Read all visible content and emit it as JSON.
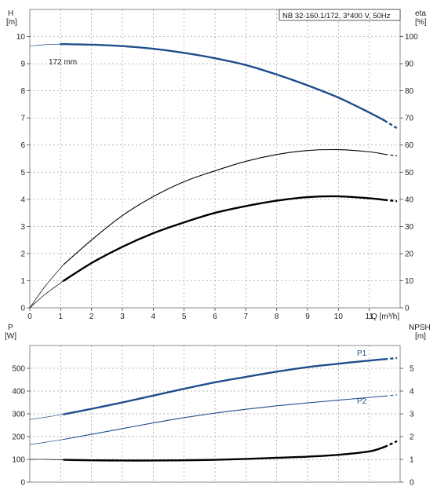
{
  "chart_data": [
    {
      "type": "line",
      "legend_box": "NB 32-160.1/172, 3*400 V, 50Hz",
      "annotation": "172 mm",
      "x_axis": {
        "label": "Q [m³/h]",
        "range": [
          0,
          12
        ],
        "ticks": [
          "0",
          "1",
          "2",
          "3",
          "4",
          "5",
          "6",
          "7",
          "8",
          "9",
          "10",
          "11"
        ]
      },
      "y_left": {
        "label_line1": "H",
        "label_line2": "[m]",
        "range": [
          0,
          11
        ],
        "ticks": [
          "0",
          "1",
          "2",
          "3",
          "4",
          "5",
          "6",
          "7",
          "8",
          "9",
          "10"
        ]
      },
      "y_right": {
        "label_line1": "eta",
        "label_line2": "[%]",
        "range": [
          0,
          110
        ],
        "ticks": [
          "0",
          "10",
          "20",
          "30",
          "40",
          "50",
          "60",
          "70",
          "80",
          "90",
          "100"
        ]
      },
      "grid": true,
      "series": [
        {
          "axis": "left",
          "color": "#1f4e8c",
          "style": "thick",
          "x": [
            0,
            0.5,
            1,
            1.2,
            2,
            3,
            4,
            5,
            6,
            7,
            8,
            9,
            10,
            11,
            11.5,
            11.9
          ],
          "values": [
            9.65,
            9.7,
            9.72,
            9.72,
            9.7,
            9.65,
            9.55,
            9.4,
            9.2,
            8.95,
            8.6,
            8.2,
            7.75,
            7.2,
            6.9,
            6.62
          ]
        },
        {
          "axis": "right",
          "color": "#000000",
          "style": "thin",
          "x": [
            0,
            0.5,
            1.1,
            2,
            3,
            4,
            5,
            6,
            7,
            8,
            9,
            10,
            11,
            11.5,
            11.9
          ],
          "values": [
            0,
            8,
            16,
            25,
            34,
            41,
            46.5,
            50.5,
            54,
            56.5,
            58,
            58.3,
            57.5,
            56.6,
            56
          ]
        },
        {
          "axis": "right",
          "color": "#000000",
          "style": "thick",
          "x": [
            0,
            0.5,
            1.1,
            2,
            3,
            4,
            5,
            6,
            7,
            8,
            9,
            10,
            11,
            11.5,
            11.9
          ],
          "values": [
            0,
            5,
            10,
            16.5,
            22.5,
            27.5,
            31.5,
            35,
            37.5,
            39.5,
            40.8,
            41.1,
            40.4,
            39.8,
            39.3
          ]
        }
      ]
    },
    {
      "type": "line",
      "x_axis": {
        "range": [
          0,
          12
        ]
      },
      "y_left": {
        "label_line1": "P",
        "label_line2": "[W]",
        "range": [
          0,
          600
        ],
        "ticks": [
          "0",
          "100",
          "200",
          "300",
          "400",
          "500"
        ]
      },
      "y_right": {
        "label_line1": "NPSH",
        "label_line2": "[m]",
        "range": [
          0,
          6
        ],
        "ticks": [
          "0",
          "1",
          "2",
          "3",
          "4",
          "5"
        ]
      },
      "grid": true,
      "series": [
        {
          "name": "P1",
          "axis": "left",
          "color": "#1f4e8c",
          "style": "thick",
          "x": [
            0,
            0.5,
            1.1,
            2,
            3,
            4,
            5,
            6,
            7,
            8,
            9,
            10,
            11,
            11.5,
            11.9
          ],
          "values": [
            275,
            285,
            298,
            322,
            350,
            380,
            410,
            438,
            462,
            485,
            505,
            520,
            534,
            540,
            545
          ]
        },
        {
          "name": "P2",
          "axis": "left",
          "color": "#1f4e8c",
          "style": "thin",
          "x": [
            0,
            0.5,
            1.1,
            2,
            3,
            4,
            5,
            6,
            7,
            8,
            9,
            10,
            11,
            11.5,
            11.9
          ],
          "values": [
            165,
            175,
            188,
            210,
            235,
            260,
            283,
            303,
            320,
            335,
            348,
            360,
            372,
            378,
            383
          ]
        },
        {
          "axis": "right",
          "color": "#000000",
          "style": "thick",
          "x": [
            0,
            0.5,
            1.1,
            2,
            3,
            4,
            5,
            6,
            7,
            8,
            9,
            10,
            11,
            11.5,
            11.9
          ],
          "values": [
            1.0,
            1.0,
            0.98,
            0.96,
            0.95,
            0.95,
            0.96,
            0.98,
            1.02,
            1.07,
            1.12,
            1.2,
            1.35,
            1.55,
            1.8
          ]
        }
      ]
    }
  ]
}
